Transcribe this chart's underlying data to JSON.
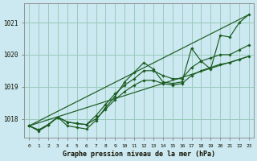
{
  "title": "Graphe pression niveau de la mer (hPa)",
  "background_color": "#cce8f0",
  "grid_color": "#99ccbb",
  "line_color": "#1a5c20",
  "x_labels": [
    "0",
    "1",
    "2",
    "3",
    "4",
    "5",
    "6",
    "7",
    "8",
    "9",
    "10",
    "11",
    "12",
    "13",
    "14",
    "15",
    "16",
    "17",
    "18",
    "19",
    "20",
    "21",
    "22",
    "23"
  ],
  "ylim": [
    1017.4,
    1021.6
  ],
  "yticks": [
    1018,
    1019,
    1020,
    1021
  ],
  "series_main": [
    1017.78,
    1017.62,
    1017.8,
    1018.05,
    1017.78,
    1017.73,
    1017.68,
    1017.95,
    1018.35,
    1018.7,
    1019.15,
    1019.45,
    1019.75,
    1019.55,
    1019.15,
    1019.1,
    1019.15,
    1020.2,
    1019.8,
    1019.55,
    1020.6,
    1020.55,
    1021.0,
    1021.25
  ],
  "series_smooth1": [
    1017.78,
    1017.65,
    1017.82,
    1018.05,
    1017.9,
    1017.85,
    1017.82,
    1018.0,
    1018.3,
    1018.6,
    1018.85,
    1019.05,
    1019.2,
    1019.2,
    1019.1,
    1019.05,
    1019.1,
    1019.35,
    1019.5,
    1019.6,
    1019.7,
    1019.75,
    1019.85,
    1019.95
  ],
  "series_smooth2": [
    1017.78,
    1017.65,
    1017.82,
    1018.05,
    1017.9,
    1017.85,
    1017.82,
    1018.1,
    1018.45,
    1018.78,
    1019.05,
    1019.25,
    1019.5,
    1019.5,
    1019.35,
    1019.25,
    1019.25,
    1019.6,
    1019.8,
    1019.9,
    1020.0,
    1020.0,
    1020.15,
    1020.3
  ],
  "trend1": [
    1017.78,
    1021.25
  ],
  "trend2": [
    1017.78,
    1019.95
  ],
  "xlim": [
    -0.5,
    23.5
  ]
}
